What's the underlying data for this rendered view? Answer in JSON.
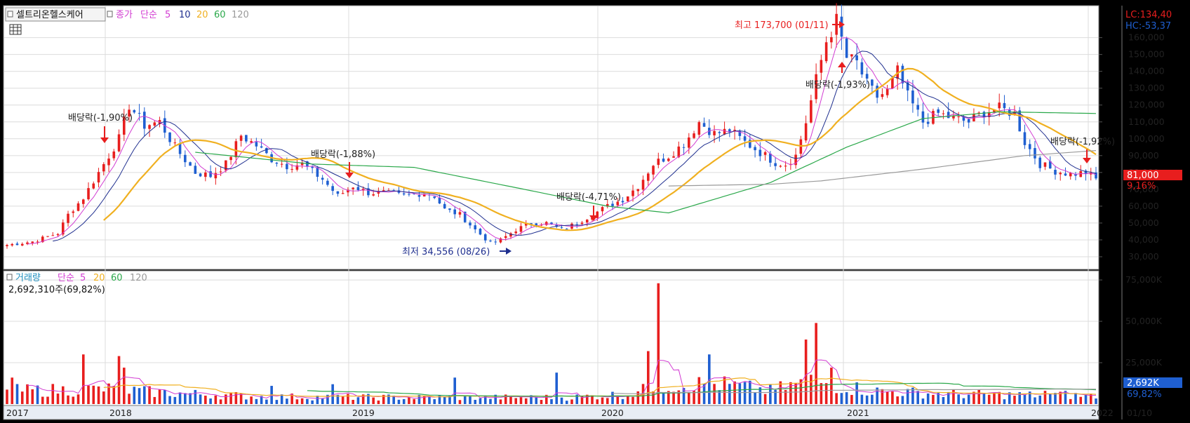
{
  "window": {
    "title": "셀트리온헬스케어",
    "title_button_icon": "square-icon",
    "toolbar_icon": "grid-icon"
  },
  "colors": {
    "up": "#e81e1e",
    "down": "#1f5fd1",
    "ma5": "#d23cd2",
    "ma10": "#1f2f8f",
    "ma20": "#f0b020",
    "ma60": "#2aa84a",
    "ma120": "#9a9a9a",
    "grid": "#dcdcdc",
    "panel_bg": "#ffffff",
    "frame": "#000000"
  },
  "price_legend": {
    "type": "종가",
    "method": "단순",
    "periods": [
      "5",
      "10",
      "20",
      "60",
      "120"
    ]
  },
  "volume_legend": {
    "type": "거래량",
    "method": "단순",
    "periods": [
      "5",
      "20",
      "60",
      "120"
    ],
    "current": "2,692,310주(69,82%)"
  },
  "right_info": {
    "lc": "LC:134,40",
    "hc": "HC:-53,37",
    "last_price": "81,000",
    "last_change": "9,16%",
    "last_volume": "2,692K",
    "last_volume_pct": "69,82%"
  },
  "annotations": {
    "high": "최고 173,700 (01/11)",
    "low": "최저 34,556 (08/26)",
    "dividend_1": "배당락(-1,90%)",
    "dividend_2": "배당락(-1,88%)",
    "dividend_3": "배당락(-4,71%)",
    "dividend_4": "배당락(-1,93%)",
    "dividend_5": "배당락(-1,92%)"
  },
  "x_axis": {
    "labels": [
      "2017",
      "2018",
      "2019",
      "2020",
      "2021",
      "2022"
    ],
    "end_label": "01/10"
  },
  "chart_data": [
    {
      "type": "candlestick",
      "interval": "weekly (approx.)",
      "y_axis_ticks": [
        "30,000",
        "40,000",
        "50,000",
        "60,000",
        "70,000",
        "80,000",
        "90,000",
        "100,000",
        "110,000",
        "120,000",
        "130,000",
        "140,000",
        "150,000",
        "160,000"
      ],
      "ylim": [
        25000,
        174000
      ],
      "moving_averages": [
        "5",
        "10",
        "20",
        "60",
        "120"
      ],
      "anchors": [
        [
          0,
          37000
        ],
        [
          5,
          39000
        ],
        [
          10,
          44000
        ],
        [
          12,
          55000
        ],
        [
          15,
          65000
        ],
        [
          18,
          80000
        ],
        [
          22,
          100000
        ],
        [
          24,
          120000
        ],
        [
          27,
          108000
        ],
        [
          30,
          110000
        ],
        [
          33,
          95000
        ],
        [
          37,
          80000
        ],
        [
          40,
          78000
        ],
        [
          43,
          85000
        ],
        [
          46,
          102000
        ],
        [
          49,
          96000
        ],
        [
          52,
          88000
        ],
        [
          55,
          84000
        ],
        [
          58,
          85000
        ],
        [
          62,
          76000
        ],
        [
          65,
          66000
        ],
        [
          68,
          72000
        ],
        [
          71,
          68000
        ],
        [
          74,
          68000
        ],
        [
          78,
          66000
        ],
        [
          82,
          68000
        ],
        [
          84,
          66000
        ],
        [
          86,
          58000
        ],
        [
          89,
          55000
        ],
        [
          92,
          46000
        ],
        [
          95,
          38000
        ],
        [
          97,
          40000
        ],
        [
          100,
          46000
        ],
        [
          103,
          50000
        ],
        [
          106,
          50000
        ],
        [
          109,
          46000
        ],
        [
          112,
          50000
        ],
        [
          115,
          55000
        ],
        [
          118,
          60000
        ],
        [
          121,
          64000
        ],
        [
          124,
          72000
        ],
        [
          127,
          85000
        ],
        [
          130,
          90000
        ],
        [
          133,
          97000
        ],
        [
          136,
          110000
        ],
        [
          139,
          103000
        ],
        [
          142,
          105000
        ],
        [
          145,
          98000
        ],
        [
          148,
          92000
        ],
        [
          151,
          86000
        ],
        [
          153,
          85000
        ],
        [
          155,
          90000
        ],
        [
          157,
          110000
        ],
        [
          159,
          135000
        ],
        [
          161,
          158000
        ],
        [
          163,
          170000
        ],
        [
          165,
          148000
        ],
        [
          167,
          145000
        ],
        [
          169,
          132000
        ],
        [
          171,
          125000
        ],
        [
          173,
          128000
        ],
        [
          175,
          140000
        ],
        [
          177,
          125000
        ],
        [
          180,
          110000
        ],
        [
          183,
          115000
        ],
        [
          186,
          112000
        ],
        [
          189,
          110000
        ],
        [
          192,
          116000
        ],
        [
          195,
          118000
        ],
        [
          198,
          115000
        ],
        [
          200,
          98000
        ],
        [
          203,
          85000
        ],
        [
          206,
          81000
        ],
        [
          209,
          79000
        ],
        [
          212,
          80000
        ],
        [
          214,
          76000
        ]
      ],
      "ma60_anchors": [
        [
          37,
          92000
        ],
        [
          60,
          85000
        ],
        [
          80,
          83000
        ],
        [
          100,
          71000
        ],
        [
          118,
          60000
        ],
        [
          130,
          56000
        ],
        [
          150,
          74000
        ],
        [
          165,
          95000
        ],
        [
          180,
          112000
        ],
        [
          195,
          116000
        ],
        [
          214,
          115000
        ]
      ],
      "ma120_anchors": [
        [
          130,
          72000
        ],
        [
          150,
          73000
        ],
        [
          160,
          75000
        ],
        [
          180,
          82000
        ],
        [
          200,
          90000
        ],
        [
          214,
          93000
        ]
      ]
    },
    {
      "type": "bar",
      "series_type": "volume",
      "y_axis_ticks": [
        "25,000K",
        "50,000K",
        "75,000K"
      ],
      "ylim": [
        0,
        78000
      ],
      "moving_averages": [
        "5",
        "20",
        "60",
        "120"
      ],
      "spikes": [
        [
          1,
          16000
        ],
        [
          15,
          30000
        ],
        [
          22,
          29000
        ],
        [
          23,
          22000
        ],
        [
          52,
          11000
        ],
        [
          64,
          12000
        ],
        [
          88,
          16000
        ],
        [
          108,
          19000
        ],
        [
          126,
          32000
        ],
        [
          128,
          73000
        ],
        [
          138,
          30000
        ],
        [
          157,
          39000
        ],
        [
          159,
          49000
        ],
        [
          162,
          22000
        ],
        [
          204,
          8000
        ],
        [
          208,
          8000
        ]
      ],
      "baseline_anchors": [
        [
          0,
          8000
        ],
        [
          20,
          9000
        ],
        [
          30,
          7000
        ],
        [
          50,
          4500
        ],
        [
          80,
          4000
        ],
        [
          110,
          4000
        ],
        [
          122,
          6000
        ],
        [
          130,
          12000
        ],
        [
          140,
          12000
        ],
        [
          150,
          8000
        ],
        [
          158,
          14000
        ],
        [
          170,
          8000
        ],
        [
          185,
          6000
        ],
        [
          214,
          5000
        ]
      ]
    }
  ]
}
